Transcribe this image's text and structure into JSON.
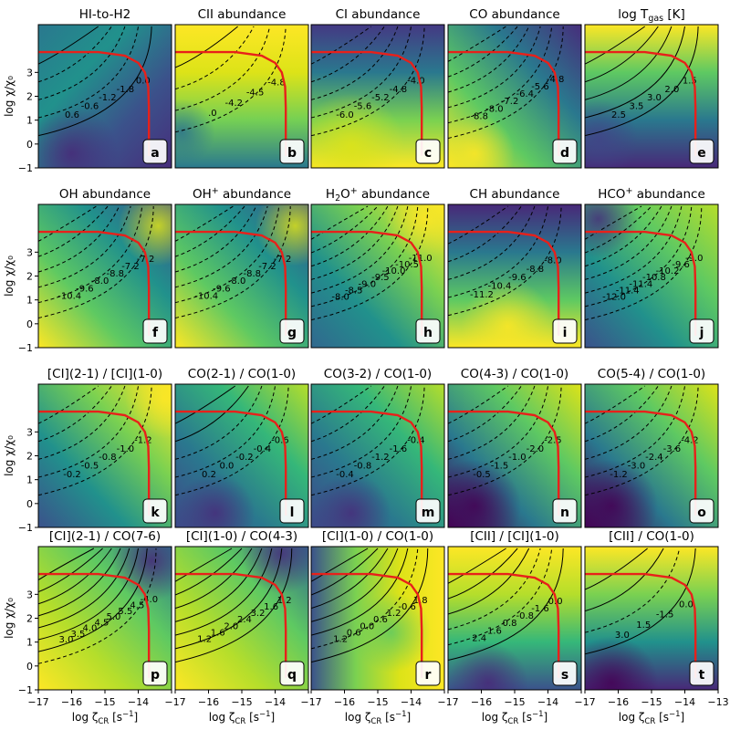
{
  "chart_data": {
    "type": "heatmap",
    "x_range": [
      -17,
      -13
    ],
    "y_range": [
      -1,
      5
    ],
    "x_ticks": [
      "−17",
      "−16",
      "−15",
      "−14",
      "−13"
    ],
    "y_ticks": [
      "−1",
      "0",
      "1",
      "2",
      "3"
    ],
    "xlabel_main": "log ζ",
    "xlabel_sub": "CR",
    "xlabel_unit": " [s",
    "xlabel_exp": "−1",
    "xlabel_end": "]",
    "ylabel": "log χ/χ₀",
    "panels": [
      {
        "label": "a",
        "title": "HI-to-H2",
        "style": 0,
        "contours": [
          "0.6",
          "-0.6",
          "-1.2",
          "-1.8",
          "0.0"
        ]
      },
      {
        "label": "b",
        "title": "CII abundance",
        "style": 1,
        "contours": [
          ".0",
          "-4.2",
          "-4.5",
          "-4.8"
        ]
      },
      {
        "label": "c",
        "title": "CI abundance",
        "style": 2,
        "contours": [
          "-6.0",
          "-5.6",
          "-5.2",
          "-4.8",
          "-4.0"
        ]
      },
      {
        "label": "d",
        "title": "CO abundance",
        "style": 3,
        "contours": [
          "-8.8",
          "-8.0",
          "-7.2",
          "-6.4",
          "-5.6",
          "-4.8"
        ]
      },
      {
        "label": "e",
        "title": "log T",
        "title_sub": "gas",
        "title_end": " [K]",
        "style": 4,
        "contours": [
          "2.5",
          "3.5",
          "3.0",
          "2.0",
          "1.5"
        ]
      },
      {
        "label": "f",
        "title": "OH abundance",
        "style": 5,
        "contours": [
          "-10.4",
          "-9.6",
          "-8.0",
          "-8.8",
          "-7.2",
          "-7.2"
        ]
      },
      {
        "label": "g",
        "title": "OH",
        "title_sup": "+",
        "title_end": " abundance",
        "style": 5,
        "contours": [
          "-10.4",
          "-9.6",
          "-8.0",
          "-8.8",
          "-7.2",
          "-7.2"
        ]
      },
      {
        "label": "h",
        "title": "H",
        "title_sub": "2",
        "title_mid": "O",
        "title_sup": "+",
        "title_end": " abundance",
        "style": 6,
        "contours": [
          "-8.0",
          "-8.5",
          "-9.0",
          "-9.5",
          "-10.0",
          "-10.5",
          "-11.0"
        ]
      },
      {
        "label": "i",
        "title": "CH abundance",
        "style": 7,
        "contours": [
          "-11.2",
          "-10.4",
          "-9.6",
          "-8.8",
          "-8.0"
        ]
      },
      {
        "label": "j",
        "title": "HCO",
        "title_sup": "+",
        "title_end": " abundance",
        "style": 8,
        "contours": [
          "-12.0",
          "-11.4",
          "-11.4",
          "-10.8",
          "-10.2",
          "-9.6",
          "-9.0"
        ]
      },
      {
        "label": "k",
        "title": "[CI](2-1) / [CI](1-0)",
        "style": 9,
        "contours": [
          "-0.2",
          "-0.5",
          "-0.8",
          "-1.0",
          "-1.2"
        ]
      },
      {
        "label": "l",
        "title": "CO(2-1) / CO(1-0)",
        "style": 10,
        "contours": [
          "0.2",
          "0.0",
          "-0.2",
          "-0.4",
          "-0.6"
        ]
      },
      {
        "label": "m",
        "title": "CO(3-2) / CO(1-0)",
        "style": 10,
        "contours": [
          "-0.4",
          "-0.8",
          "-1.2",
          "-1.6",
          "-0.4"
        ]
      },
      {
        "label": "n",
        "title": "CO(4-3) / CO(1-0)",
        "style": 11,
        "contours": [
          "-0.5",
          "-1.5",
          "-1.0",
          "-2.0",
          "-2.5"
        ]
      },
      {
        "label": "o",
        "title": "CO(5-4) / CO(1-0)",
        "style": 11,
        "contours": [
          "-1.2",
          "-3.0",
          "-2.4",
          "-3.6",
          "-4.2"
        ]
      },
      {
        "label": "p",
        "title": "[CI](2-1) / CO(7-6)",
        "style": 12,
        "contours": [
          "3.0",
          "3.5",
          "4.0",
          "4.5",
          "5.0",
          "5.5",
          "4.5",
          "-4.0"
        ]
      },
      {
        "label": "q",
        "title": "[CI](1-0) / CO(4-3)",
        "style": 13,
        "contours": [
          "1.2",
          "1.6",
          "2.0",
          "2.4",
          "3.2",
          "1.6",
          "1.2"
        ]
      },
      {
        "label": "r",
        "title": "[CI](1-0) / CO(1-0)",
        "style": 14,
        "contours": [
          "1.2",
          "0.6",
          "0.0",
          "0.6",
          "1.2",
          "-0.6",
          "1.8"
        ]
      },
      {
        "label": "s",
        "title": "[CII] / [CI](1-0)",
        "style": 15,
        "contours": [
          "2.4",
          "1.6",
          "0.8",
          "-0.8",
          "-1.6",
          "0.0"
        ]
      },
      {
        "label": "t",
        "title": "[CII] / CO(1-0)",
        "style": 16,
        "contours": [
          "3.0",
          "1.5",
          "-1.5",
          "0.0"
        ]
      }
    ]
  }
}
